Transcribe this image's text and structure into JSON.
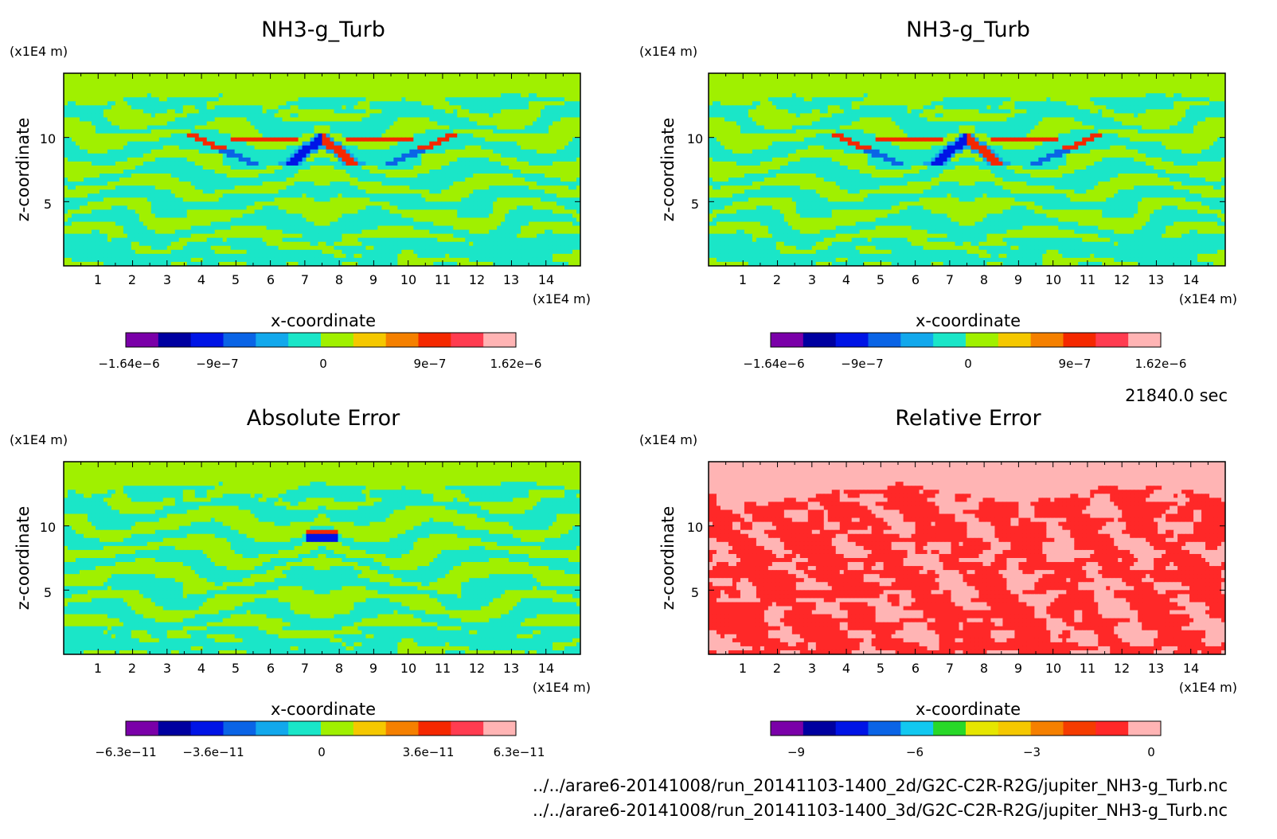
{
  "timestamp": "21840.0 sec",
  "files": [
    "../../arare6-20141008/run_20141103-1400_2d/G2C-C2R-R2G/jupiter_NH3-g_Turb.nc",
    "../../arare6-20141008/run_20141103-1400_3d/G2C-C2R-R2G/jupiter_NH3-g_Turb.nc"
  ],
  "palette_main": [
    "#7a00a8",
    "#0000a0",
    "#0014e6",
    "#0a64e6",
    "#12a8ec",
    "#1ae6c8",
    "#a0f000",
    "#f5c800",
    "#f58000",
    "#f52800",
    "#ff3c50",
    "#ffb4b4"
  ],
  "palette_rel": [
    "#7a00a8",
    "#0000a0",
    "#0014e6",
    "#0a64e6",
    "#12c8f0",
    "#28d828",
    "#e6e600",
    "#f5c800",
    "#f58000",
    "#f53c00",
    "#ff2828",
    "#ffb4b4"
  ],
  "chart_data": [
    {
      "type": "heatmap",
      "title": "NH3-g_Turb",
      "xlabel": "x-coordinate",
      "ylabel": "z-coordinate",
      "x_unit": "(x1E4 m)",
      "z_unit": "(x1E4 m)",
      "xlim": [
        0,
        15
      ],
      "zlim": [
        0,
        15
      ],
      "x_ticks": [
        "1",
        "2",
        "3",
        "4",
        "5",
        "6",
        "7",
        "8",
        "9",
        "10",
        "11",
        "12",
        "13",
        "14"
      ],
      "z_ticks": [
        "5",
        "10"
      ],
      "colorbar": {
        "min": -1.64e-06,
        "max": 1.62e-06,
        "labels": [
          "−1.64e−6",
          "−9e−7",
          "0",
          "9e−7",
          "1.62e−6"
        ]
      }
    },
    {
      "type": "heatmap",
      "title": "NH3-g_Turb",
      "xlabel": "x-coordinate",
      "ylabel": "z-coordinate",
      "x_unit": "(x1E4 m)",
      "z_unit": "(x1E4 m)",
      "xlim": [
        0,
        15
      ],
      "zlim": [
        0,
        15
      ],
      "x_ticks": [
        "1",
        "2",
        "3",
        "4",
        "5",
        "6",
        "7",
        "8",
        "9",
        "10",
        "11",
        "12",
        "13",
        "14"
      ],
      "z_ticks": [
        "5",
        "10"
      ],
      "colorbar": {
        "min": -1.64e-06,
        "max": 1.62e-06,
        "labels": [
          "−1.64e−6",
          "−9e−7",
          "0",
          "9e−7",
          "1.62e−6"
        ]
      }
    },
    {
      "type": "heatmap",
      "title": "Absolute Error",
      "xlabel": "x-coordinate",
      "ylabel": "z-coordinate",
      "x_unit": "(x1E4 m)",
      "z_unit": "(x1E4 m)",
      "xlim": [
        0,
        15
      ],
      "zlim": [
        0,
        15
      ],
      "x_ticks": [
        "1",
        "2",
        "3",
        "4",
        "5",
        "6",
        "7",
        "8",
        "9",
        "10",
        "11",
        "12",
        "13",
        "14"
      ],
      "z_ticks": [
        "5",
        "10"
      ],
      "colorbar": {
        "min": -6.3e-11,
        "max": 6.3e-11,
        "labels": [
          "−6.3e−11",
          "−3.6e−11",
          "0",
          "3.6e−11",
          "6.3e−11"
        ]
      }
    },
    {
      "type": "heatmap",
      "title": "Relative Error",
      "xlabel": "x-coordinate",
      "ylabel": "z-coordinate",
      "x_unit": "(x1E4 m)",
      "z_unit": "(x1E4 m)",
      "xlim": [
        0,
        15
      ],
      "zlim": [
        0,
        15
      ],
      "x_ticks": [
        "1",
        "2",
        "3",
        "4",
        "5",
        "6",
        "7",
        "8",
        "9",
        "10",
        "11",
        "12",
        "13",
        "14"
      ],
      "z_ticks": [
        "5",
        "10"
      ],
      "colorbar": {
        "min": -10,
        "max": 0,
        "labels": [
          "−9",
          "−6",
          "−3",
          "0"
        ]
      }
    }
  ]
}
